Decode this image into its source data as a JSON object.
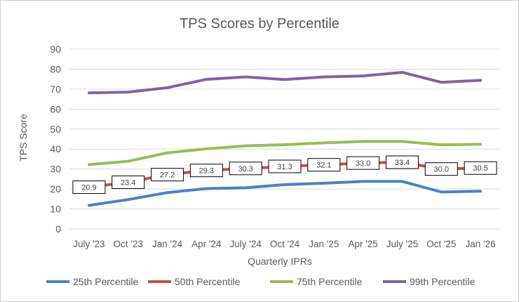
{
  "chart_data": {
    "type": "line",
    "title": "TPS Scores by Percentile",
    "xlabel": "Quarterly IPRs",
    "ylabel": "TPS Score",
    "ylim": [
      0,
      90
    ],
    "yticks": [
      0,
      10,
      20,
      30,
      40,
      50,
      60,
      70,
      80,
      90
    ],
    "grid": true,
    "legend": "bottom",
    "categories": [
      "July '23",
      "Oct '23",
      "Jan '24",
      "Apr '24",
      "July '24",
      "Oct '24",
      "Jan '25",
      "Apr '25",
      "July '25",
      "Oct '25",
      "Jan '26"
    ],
    "series": [
      {
        "name": "25th Percentile",
        "color": "#4f81bd",
        "values": [
          11.8,
          14.7,
          18.2,
          20.2,
          20.6,
          22.2,
          22.9,
          23.8,
          23.8,
          18.5,
          18.9
        ],
        "show_labels": false
      },
      {
        "name": "50th Percentile",
        "color": "#c0504d",
        "values": [
          20.9,
          23.4,
          27.2,
          29.3,
          30.3,
          31.3,
          32.1,
          33.0,
          33.4,
          30.0,
          30.5
        ],
        "show_labels": true,
        "labels": [
          "20.9",
          "23.4",
          "27.2",
          "29.3",
          "30.3",
          "31.3",
          "32.1",
          "33.0",
          "33.4",
          "30.0",
          "30.5"
        ]
      },
      {
        "name": "75th Percentile",
        "color": "#9bbb59",
        "values": [
          32.2,
          33.9,
          38.1,
          40.1,
          41.6,
          42.2,
          43.1,
          43.8,
          43.8,
          42.1,
          42.4
        ],
        "show_labels": false
      },
      {
        "name": "99th Percentile",
        "color": "#8064a2",
        "values": [
          68.1,
          68.5,
          70.7,
          74.9,
          76.1,
          74.8,
          76.1,
          76.6,
          78.4,
          73.4,
          74.4
        ],
        "show_labels": false
      }
    ]
  }
}
